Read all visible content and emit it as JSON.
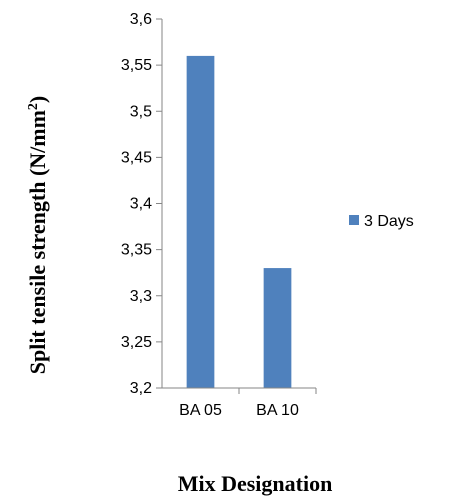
{
  "chart_data": {
    "type": "bar",
    "categories": [
      "BA 05",
      "BA 10"
    ],
    "series": [
      {
        "name": "3 Days",
        "values": [
          3.56,
          3.33
        ],
        "color": "#4f81bd"
      }
    ],
    "ylim": [
      3.2,
      3.6
    ],
    "yticks": [
      "3,2",
      "3,25",
      "3,3",
      "3,35",
      "3,4",
      "3,45",
      "3,5",
      "3,55",
      "3,6"
    ],
    "xlabel": "Mix Designation",
    "ylabel": {
      "main": "Split tensile strength (N/mm",
      "sup": "2",
      "close": ")"
    },
    "legend_position": "right",
    "grid": false
  }
}
